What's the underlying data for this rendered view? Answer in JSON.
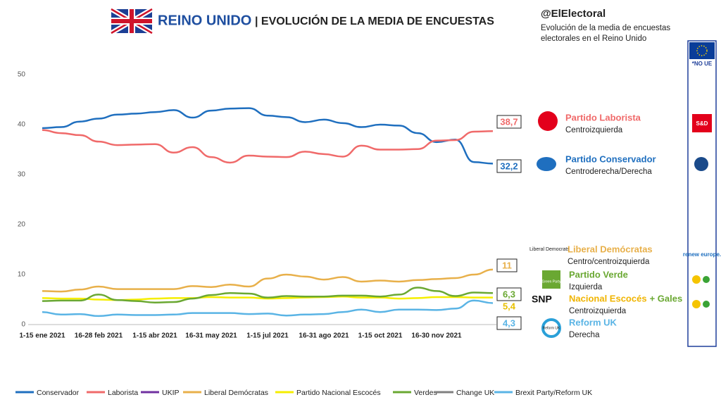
{
  "chart_data": {
    "type": "line",
    "title": "REINO UNIDO",
    "subtitle": "| EVOLUCIÓN DE LA MEDIA DE ENCUESTAS",
    "source": "@ElElectoral",
    "description": [
      "Evolución de la media de encuestas",
      "electorales en el Reino Unido"
    ],
    "categories": [
      "1-15 ene 2021",
      null,
      null,
      "16-28 feb 2021",
      null,
      null,
      "1-15 abr 2021",
      null,
      null,
      "16-31 may 2021",
      null,
      null,
      "1-15 jul 2021",
      null,
      null,
      "16-31 ago 2021",
      null,
      null,
      "1-15 oct 2021",
      null,
      null,
      "16-30 nov 2021",
      null,
      null,
      null
    ],
    "ylim": [
      0,
      50
    ],
    "yticks": [
      0,
      10,
      20,
      30,
      40,
      50
    ],
    "grid": false,
    "legend": "bottom",
    "series": [
      {
        "name": "Conservador",
        "color": "#1f6fbf",
        "values": [
          39.3,
          39.5,
          40.6,
          41.2,
          42.0,
          42.2,
          42.5,
          42.9,
          41.4,
          42.8,
          43.2,
          43.3,
          41.8,
          41.5,
          40.5,
          41.0,
          40.3,
          39.5,
          40.0,
          39.8,
          38.3,
          36.5,
          37.0,
          32.5,
          32.2
        ],
        "value_labels": [
          null,
          null,
          null,
          null,
          null,
          null,
          null,
          null,
          null,
          null,
          null,
          null,
          null,
          null,
          null,
          null,
          null,
          null,
          null,
          null,
          null,
          null,
          null,
          null,
          "32,2"
        ]
      },
      {
        "name": "Laborista",
        "color": "#f06a6a",
        "values": [
          38.9,
          38.3,
          37.9,
          36.6,
          35.9,
          36.0,
          36.1,
          34.4,
          35.5,
          33.5,
          32.4,
          33.8,
          33.6,
          33.5,
          34.6,
          34.1,
          33.6,
          35.8,
          35.0,
          35.0,
          35.1,
          36.8,
          36.9,
          38.6,
          38.7
        ],
        "value_labels": [
          null,
          null,
          null,
          null,
          null,
          null,
          null,
          null,
          null,
          null,
          null,
          null,
          null,
          null,
          null,
          null,
          null,
          null,
          null,
          null,
          null,
          null,
          null,
          null,
          "38,7"
        ]
      },
      {
        "name": "UKIP",
        "color": "#7030a0",
        "values": [
          null,
          null,
          null,
          null,
          null,
          null,
          null,
          null,
          null,
          null,
          null,
          null,
          null,
          null,
          null,
          null,
          null,
          null,
          null,
          null,
          null,
          null,
          null,
          null,
          null
        ]
      },
      {
        "name": "Liberal Demócratas",
        "color": "#e8b04a",
        "values": [
          6.7,
          6.6,
          7.0,
          7.6,
          7.1,
          7.1,
          7.1,
          7.1,
          7.7,
          7.5,
          8.0,
          7.6,
          9.2,
          10.0,
          9.6,
          9.0,
          9.5,
          8.6,
          8.8,
          8.6,
          8.9,
          9.1,
          9.3,
          10.0,
          11
        ],
        "value_labels": [
          null,
          null,
          null,
          null,
          null,
          null,
          null,
          null,
          null,
          null,
          null,
          null,
          null,
          null,
          null,
          null,
          null,
          null,
          null,
          null,
          null,
          null,
          null,
          null,
          "11"
        ]
      },
      {
        "name": "Partido Nacional Escocés",
        "color": "#f5ee00",
        "values": [
          5.3,
          5.2,
          5.2,
          5.0,
          4.9,
          5.0,
          5.2,
          5.3,
          5.3,
          5.5,
          5.4,
          5.4,
          5.2,
          5.3,
          5.4,
          5.5,
          5.6,
          5.4,
          5.4,
          5.2,
          5.3,
          5.5,
          5.5,
          5.4,
          5.4
        ],
        "value_labels": [
          null,
          null,
          null,
          null,
          null,
          null,
          null,
          null,
          null,
          null,
          null,
          null,
          null,
          null,
          null,
          null,
          null,
          null,
          null,
          null,
          null,
          null,
          null,
          null,
          "5,4"
        ]
      },
      {
        "name": "Verdes",
        "color": "#6aa832",
        "values": [
          4.7,
          4.8,
          4.8,
          6.0,
          4.9,
          4.7,
          4.4,
          4.5,
          5.2,
          5.9,
          6.3,
          6.2,
          5.4,
          5.7,
          5.6,
          5.6,
          5.8,
          5.8,
          5.6,
          6.0,
          7.4,
          6.7,
          5.7,
          6.4,
          6.3
        ],
        "value_labels": [
          null,
          null,
          null,
          null,
          null,
          null,
          null,
          null,
          null,
          null,
          null,
          null,
          null,
          null,
          null,
          null,
          null,
          null,
          null,
          null,
          null,
          null,
          null,
          null,
          "6,3"
        ]
      },
      {
        "name": "Change UK",
        "color": "#808080",
        "values": [
          null,
          null,
          null,
          null,
          null,
          null,
          null,
          null,
          null,
          null,
          null,
          null,
          null,
          null,
          null,
          null,
          null,
          null,
          null,
          null,
          null,
          null,
          null,
          null,
          null
        ]
      },
      {
        "name": "Brexit Party/Reform UK",
        "color": "#5ab4e5",
        "values": [
          2.5,
          2.0,
          2.1,
          1.7,
          2.0,
          1.9,
          1.9,
          2.0,
          2.3,
          2.3,
          2.3,
          2.1,
          2.2,
          1.8,
          2.0,
          2.1,
          2.5,
          3.0,
          2.5,
          3.0,
          3.0,
          2.9,
          3.2,
          4.8,
          4.3
        ],
        "value_labels": [
          null,
          null,
          null,
          null,
          null,
          null,
          null,
          null,
          null,
          null,
          null,
          null,
          null,
          null,
          null,
          null,
          null,
          null,
          null,
          null,
          null,
          null,
          null,
          null,
          "4,3"
        ]
      }
    ],
    "party_labels": [
      {
        "name": "Partido Laborista",
        "subtitle": "Centroizquierda"
      },
      {
        "name": "Partido Conservador",
        "subtitle": "Centroderecha/Derecha"
      },
      {
        "name": "Liberal Demócratas",
        "subtitle": "Centro/centroizquierda"
      },
      {
        "name": "Partido Verde",
        "subtitle": "Izquierda"
      },
      {
        "name": "Nacional Escocés",
        "extra": "+ Gales",
        "subtitle": "Centroizquierda"
      },
      {
        "name": "Reform UK",
        "subtitle": "Derecha"
      }
    ],
    "logos": [
      "Liberal Democrats",
      "Green Party",
      "SNP",
      "Reform UK"
    ],
    "eu_groups": [
      "*NO UE",
      "S&D",
      "renew europe."
    ]
  }
}
